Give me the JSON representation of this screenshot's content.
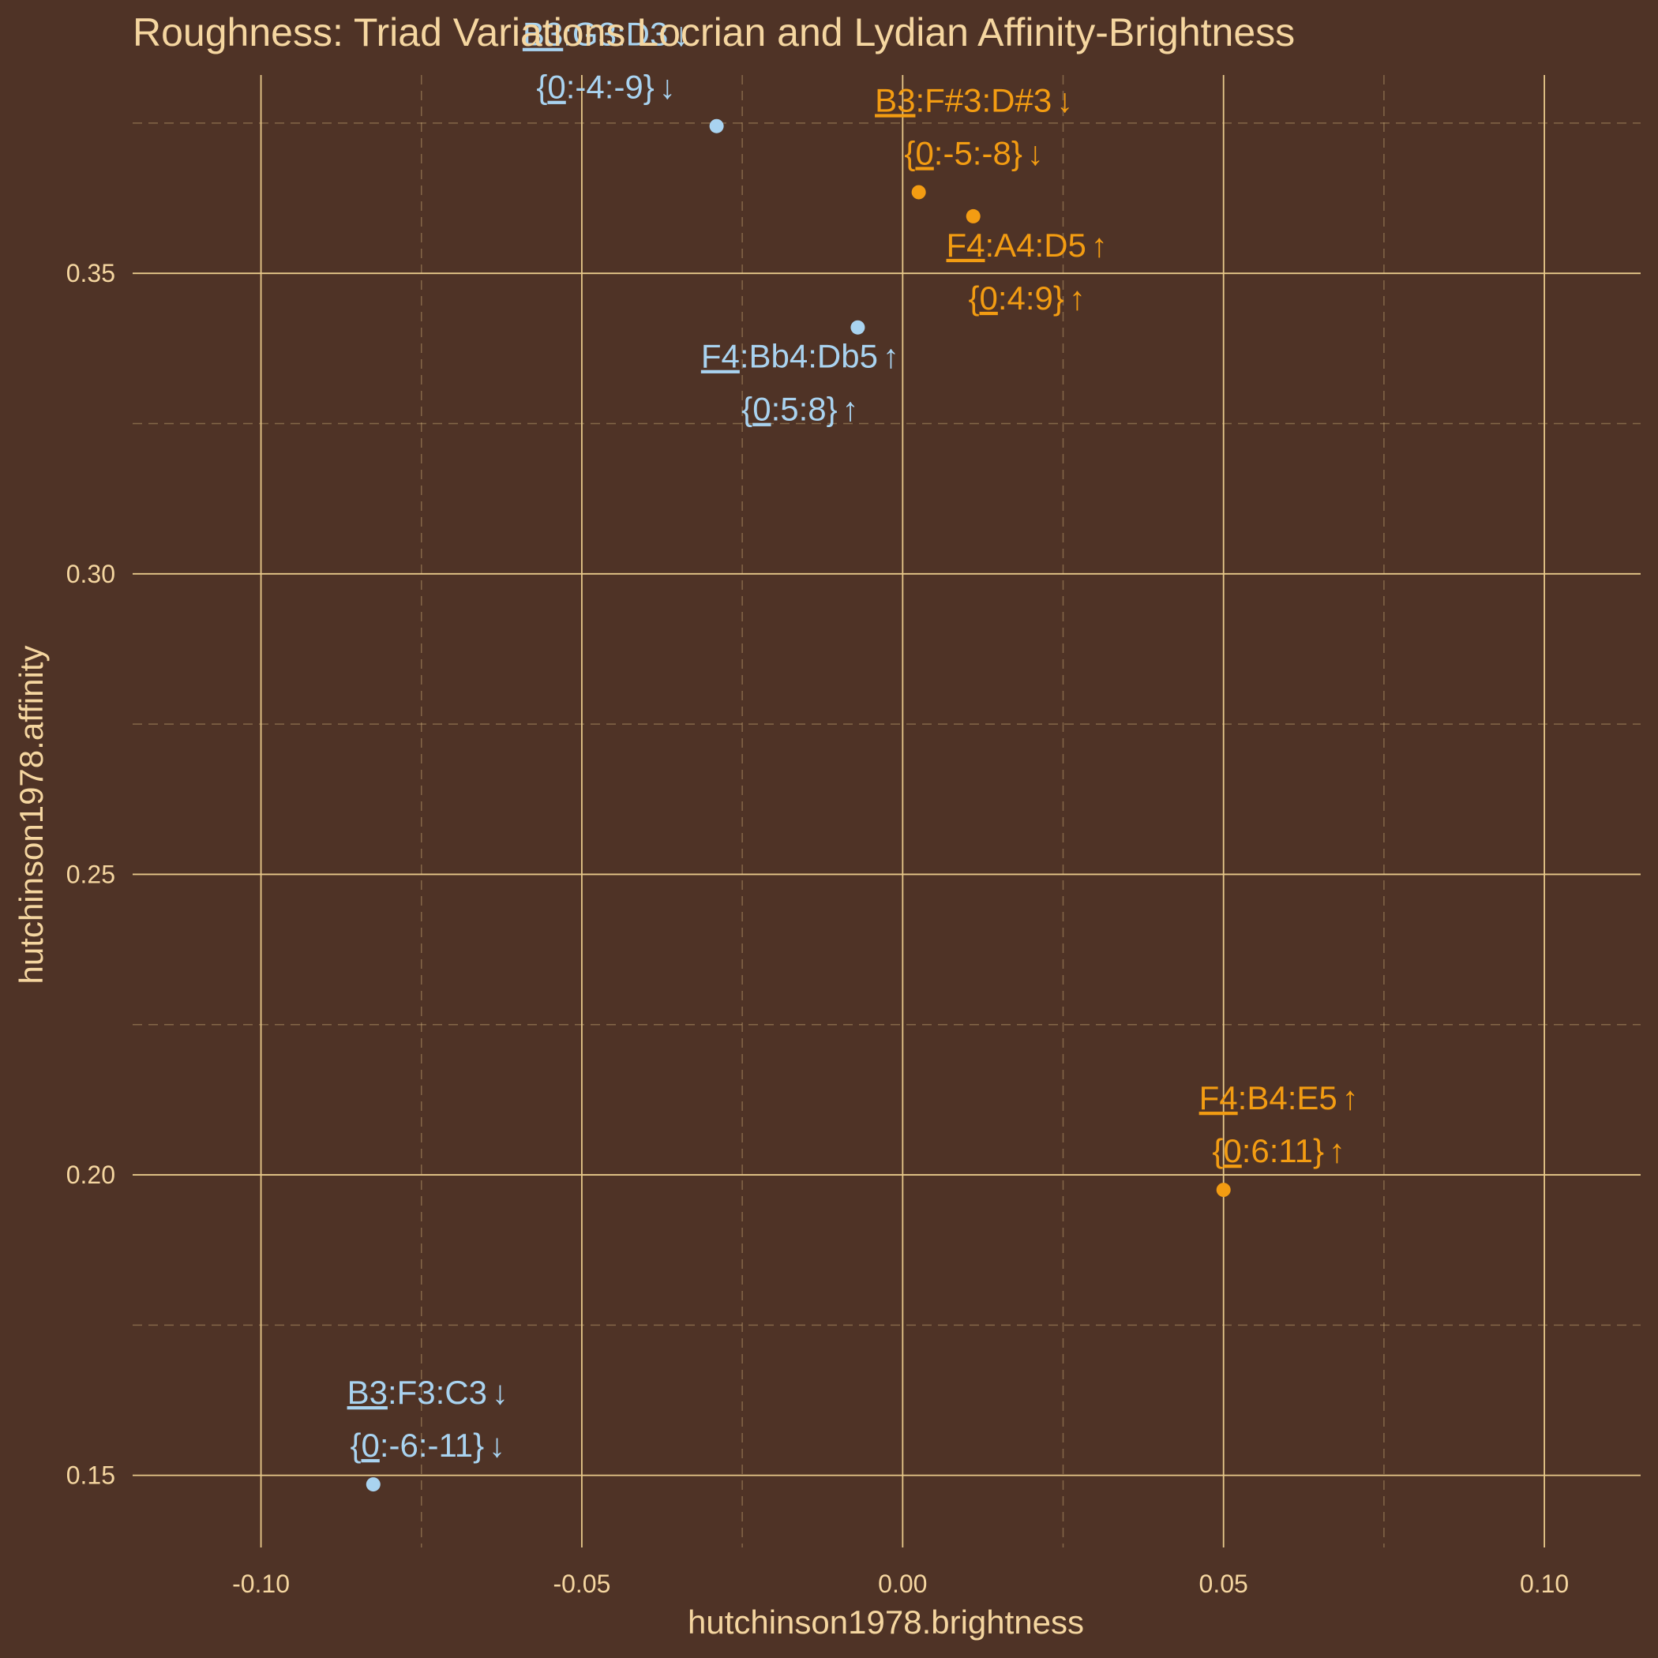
{
  "chart_data": {
    "type": "scatter",
    "title": "Roughness: Triad Variations Locrian and Lydian Affinity-Brightness",
    "xlabel": "hutchinson1978.brightness",
    "ylabel": "hutchinson1978.affinity",
    "xlim": [
      -0.12,
      0.115
    ],
    "ylim": [
      0.138,
      0.383
    ],
    "xticks": [
      -0.1,
      -0.05,
      0.0,
      0.05,
      0.1
    ],
    "xtick_labels": [
      "-0.10",
      "-0.05",
      "0.00",
      "0.05",
      "0.10"
    ],
    "yticks": [
      0.15,
      0.2,
      0.25,
      0.3,
      0.35
    ],
    "ytick_labels": [
      "0.15",
      "0.20",
      "0.25",
      "0.30",
      "0.35"
    ],
    "grid": true,
    "colors": {
      "background": "#4f3326",
      "text": "#f5d6a0",
      "grid": "#e8c98a",
      "blue": "#a9d3f0",
      "orange": "#f39c12"
    },
    "points": [
      {
        "x": -0.029,
        "y": 0.3745,
        "color": "blue",
        "line1": {
          "root": "B3",
          "rest": ":G3:D3",
          "arrow": "↓"
        },
        "line2": {
          "pre": "{",
          "root": "0",
          "rest": ":-4:-9}",
          "arrow": "↓"
        }
      },
      {
        "x": 0.0025,
        "y": 0.3635,
        "color": "orange",
        "line1": {
          "root": "B3",
          "rest": ":F#3:D#3",
          "arrow": "↓"
        },
        "line2": {
          "pre": "{",
          "root": "0",
          "rest": ":-5:-8}",
          "arrow": "↓"
        }
      },
      {
        "x": 0.011,
        "y": 0.3595,
        "color": "orange",
        "line1": {
          "root": "F4",
          "rest": ":A4:D5",
          "arrow": "↑"
        },
        "line2": {
          "pre": "{",
          "root": "0",
          "rest": ":4:9}",
          "arrow": "↑"
        }
      },
      {
        "x": -0.007,
        "y": 0.341,
        "color": "blue",
        "line1": {
          "root": "F4",
          "rest": ":Bb4:Db5",
          "arrow": "↑"
        },
        "line2": {
          "pre": "{",
          "root": "0",
          "rest": ":5:8}",
          "arrow": "↑"
        }
      },
      {
        "x": 0.05,
        "y": 0.1975,
        "color": "orange",
        "line1": {
          "root": "F4",
          "rest": ":B4:E5",
          "arrow": "↑"
        },
        "line2": {
          "pre": "{",
          "root": "0",
          "rest": ":6:11}",
          "arrow": "↑"
        }
      },
      {
        "x": -0.0825,
        "y": 0.1485,
        "color": "blue",
        "line1": {
          "root": "B3",
          "rest": ":F3:C3",
          "arrow": "↓"
        },
        "line2": {
          "pre": "{",
          "root": "0",
          "rest": ":-6:-11}",
          "arrow": "↓"
        }
      }
    ]
  }
}
